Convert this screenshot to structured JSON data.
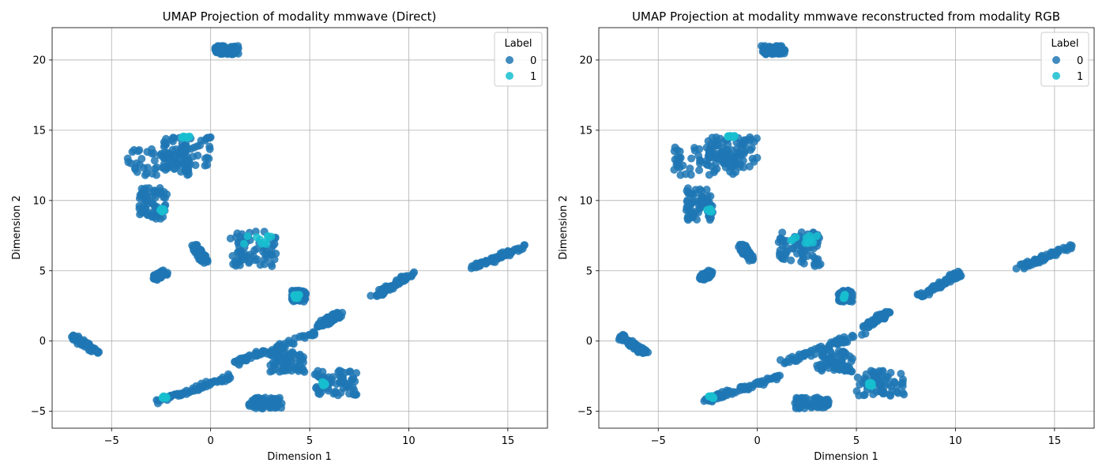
{
  "chart_data": [
    {
      "type": "scatter",
      "title": "UMAP Projection of modality mmwave (Direct)",
      "xlabel": "Dimension 1",
      "ylabel": "Dimension 2",
      "xlim": [
        -8.0,
        17.0
      ],
      "ylim": [
        -6.2,
        22.3
      ],
      "xticks": [
        -5,
        0,
        5,
        10,
        15
      ],
      "yticks": [
        -5,
        0,
        5,
        10,
        15,
        20
      ],
      "grid": true,
      "legend": {
        "title": "Label",
        "placement": "top-right",
        "entries": [
          "0",
          "1"
        ]
      },
      "series": [
        {
          "name": "0",
          "color": "#1f77b4",
          "clusters": [
            {
              "kind": "blob",
              "x": [
                0.2,
                1.4
              ],
              "y": [
                20.4,
                21.0
              ]
            },
            {
              "kind": "blob",
              "x": [
                -4.2,
                -1.0
              ],
              "y": [
                11.8,
                13.8
              ]
            },
            {
              "kind": "blob",
              "x": [
                -2.5,
                0.0
              ],
              "y": [
                12.3,
                14.5
              ]
            },
            {
              "kind": "blob",
              "x": [
                -3.6,
                -2.2
              ],
              "y": [
                8.6,
                10.9
              ]
            },
            {
              "kind": "segment",
              "from": [
                -0.8,
                6.8
              ],
              "to": [
                -0.3,
                5.7
              ]
            },
            {
              "kind": "segment",
              "from": [
                -2.8,
                4.5
              ],
              "to": [
                -2.3,
                4.9
              ]
            },
            {
              "kind": "blob",
              "x": [
                1.0,
                3.3
              ],
              "y": [
                5.3,
                7.8
              ]
            },
            {
              "kind": "segment",
              "from": [
                -6.9,
                0.3
              ],
              "to": [
                -5.6,
                -0.9
              ]
            },
            {
              "kind": "blob",
              "x": [
                4.1,
                4.8
              ],
              "y": [
                2.8,
                3.6
              ]
            },
            {
              "kind": "segment",
              "from": [
                5.5,
                1.1
              ],
              "to": [
                6.6,
                2.0
              ]
            },
            {
              "kind": "segment",
              "from": [
                8.2,
                3.2
              ],
              "to": [
                10.2,
                4.8
              ]
            },
            {
              "kind": "segment",
              "from": [
                13.2,
                5.2
              ],
              "to": [
                15.8,
                6.7
              ]
            },
            {
              "kind": "segment",
              "from": [
                1.2,
                -1.6
              ],
              "to": [
                5.4,
                0.6
              ]
            },
            {
              "kind": "segment",
              "from": [
                -2.7,
                -4.3
              ],
              "to": [
                1.1,
                -2.5
              ]
            },
            {
              "kind": "blob",
              "x": [
                1.9,
                3.6
              ],
              "y": [
                -4.8,
                -4.0
              ]
            },
            {
              "kind": "blob",
              "x": [
                5.0,
                7.4
              ],
              "y": [
                -3.9,
                -2.1
              ]
            },
            {
              "kind": "blob",
              "x": [
                3.0,
                4.8
              ],
              "y": [
                -2.2,
                -0.7
              ]
            }
          ]
        },
        {
          "name": "1",
          "color": "#17becf",
          "clusters": [
            {
              "kind": "blob",
              "x": [
                1.6,
                3.2
              ],
              "y": [
                6.9,
                7.5
              ]
            },
            {
              "kind": "blob",
              "x": [
                -1.6,
                -1.0
              ],
              "y": [
                14.4,
                14.6
              ]
            },
            {
              "kind": "blob",
              "x": [
                4.2,
                4.5
              ],
              "y": [
                3.0,
                3.3
              ]
            },
            {
              "kind": "blob",
              "x": [
                -2.6,
                -2.3
              ],
              "y": [
                9.2,
                9.4
              ]
            },
            {
              "kind": "blob",
              "x": [
                5.6,
                5.8
              ],
              "y": [
                -3.2,
                -2.9
              ]
            },
            {
              "kind": "blob",
              "x": [
                -2.5,
                -2.2
              ],
              "y": [
                -4.1,
                -3.9
              ]
            }
          ]
        }
      ]
    },
    {
      "type": "scatter",
      "title": "UMAP Projection at modality mmwave reconstructed from modality RGB",
      "xlabel": "Dimension 1",
      "ylabel": "Dimension 2",
      "xlim": [
        -8.0,
        17.0
      ],
      "ylim": [
        -6.2,
        22.3
      ],
      "xticks": [
        -5,
        0,
        5,
        10,
        15
      ],
      "yticks": [
        -5,
        0,
        5,
        10,
        15,
        20
      ],
      "grid": true,
      "legend": {
        "title": "Label",
        "placement": "top-right",
        "entries": [
          "0",
          "1"
        ]
      },
      "series": [
        {
          "name": "0",
          "color": "#1f77b4",
          "clusters": [
            {
              "kind": "blob",
              "x": [
                0.2,
                1.4
              ],
              "y": [
                20.4,
                21.0
              ]
            },
            {
              "kind": "blob",
              "x": [
                -4.2,
                -1.0
              ],
              "y": [
                11.8,
                13.8
              ]
            },
            {
              "kind": "blob",
              "x": [
                -2.5,
                0.0
              ],
              "y": [
                12.3,
                14.5
              ]
            },
            {
              "kind": "blob",
              "x": [
                -3.6,
                -2.2
              ],
              "y": [
                8.6,
                10.9
              ]
            },
            {
              "kind": "segment",
              "from": [
                -0.8,
                6.8
              ],
              "to": [
                -0.3,
                5.7
              ]
            },
            {
              "kind": "segment",
              "from": [
                -2.8,
                4.5
              ],
              "to": [
                -2.3,
                4.9
              ]
            },
            {
              "kind": "blob",
              "x": [
                1.0,
                3.3
              ],
              "y": [
                5.3,
                7.8
              ]
            },
            {
              "kind": "segment",
              "from": [
                -6.9,
                0.3
              ],
              "to": [
                -5.6,
                -0.9
              ]
            },
            {
              "kind": "blob",
              "x": [
                4.1,
                4.8
              ],
              "y": [
                2.8,
                3.6
              ]
            },
            {
              "kind": "segment",
              "from": [
                5.5,
                1.1
              ],
              "to": [
                6.6,
                2.0
              ]
            },
            {
              "kind": "segment",
              "from": [
                8.2,
                3.2
              ],
              "to": [
                10.2,
                4.8
              ]
            },
            {
              "kind": "segment",
              "from": [
                13.2,
                5.2
              ],
              "to": [
                15.8,
                6.7
              ]
            },
            {
              "kind": "segment",
              "from": [
                1.2,
                -1.6
              ],
              "to": [
                5.4,
                0.6
              ]
            },
            {
              "kind": "segment",
              "from": [
                -2.7,
                -4.3
              ],
              "to": [
                1.1,
                -2.5
              ]
            },
            {
              "kind": "blob",
              "x": [
                1.9,
                3.6
              ],
              "y": [
                -4.8,
                -4.0
              ]
            },
            {
              "kind": "blob",
              "x": [
                5.0,
                7.4
              ],
              "y": [
                -3.9,
                -2.1
              ]
            },
            {
              "kind": "blob",
              "x": [
                3.0,
                4.8
              ],
              "y": [
                -2.2,
                -0.7
              ]
            }
          ]
        },
        {
          "name": "1",
          "color": "#17becf",
          "clusters": [
            {
              "kind": "blob",
              "x": [
                1.6,
                3.2
              ],
              "y": [
                6.9,
                7.5
              ]
            },
            {
              "kind": "blob",
              "x": [
                -1.5,
                -1.1
              ],
              "y": [
                14.5,
                14.6
              ]
            },
            {
              "kind": "blob",
              "x": [
                4.2,
                4.5
              ],
              "y": [
                3.0,
                3.3
              ]
            },
            {
              "kind": "blob",
              "x": [
                -2.6,
                -2.3
              ],
              "y": [
                9.2,
                9.4
              ]
            },
            {
              "kind": "blob",
              "x": [
                5.6,
                5.8
              ],
              "y": [
                -3.2,
                -2.9
              ]
            },
            {
              "kind": "blob",
              "x": [
                -2.5,
                -2.2
              ],
              "y": [
                -4.1,
                -3.9
              ]
            }
          ]
        }
      ]
    }
  ]
}
